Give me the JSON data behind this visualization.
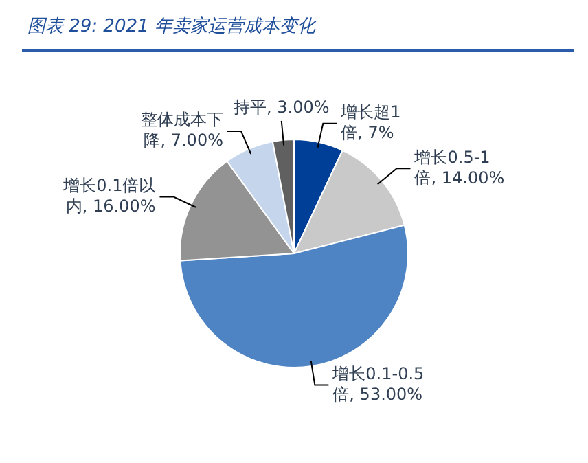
{
  "chart_data": {
    "type": "pie",
    "title": "图表 29:  2021 年卖家运营成本变化",
    "categories": [
      "增长超1倍",
      "增长0.5-1倍",
      "增长0.1-0.5倍",
      "增长0.1倍以内",
      "整体成本下降",
      "持平"
    ],
    "values": [
      7,
      14,
      53,
      16,
      7,
      3
    ],
    "value_labels": [
      "7%",
      "14.00%",
      "53.00%",
      "16.00%",
      "7.00%",
      "3.00%"
    ],
    "colors": [
      "#003f98",
      "#c9c9c9",
      "#4f84c4",
      "#939393",
      "#c5d5ec",
      "#606060"
    ],
    "legend": false
  }
}
